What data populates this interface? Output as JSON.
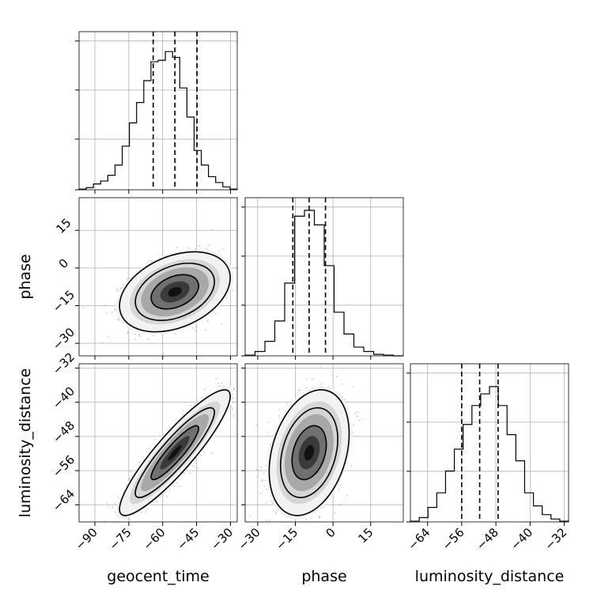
{
  "chart_data": {
    "type": "corner",
    "parameters": [
      {
        "name": "geocent_time",
        "label": "geocent_time",
        "range": [
          -97,
          -27
        ],
        "ticks": [
          "−90",
          "−75",
          "−60",
          "−45",
          "−30"
        ],
        "tick_values": [
          -90,
          -75,
          -60,
          -45,
          -30
        ],
        "quantiles": [
          -64.2,
          -54.6,
          -44.8
        ],
        "histogram_edges": [
          -97,
          -27
        ],
        "histogram_counts": [
          0.005,
          0.015,
          0.04,
          0.06,
          0.1,
          0.17,
          0.3,
          0.46,
          0.6,
          0.75,
          0.88,
          0.89,
          0.95,
          0.91,
          0.7,
          0.5,
          0.27,
          0.17,
          0.09,
          0.05,
          0.02,
          0.005
        ]
      },
      {
        "name": "phase",
        "label": "phase",
        "range": [
          -35,
          28
        ],
        "ticks": [
          "−30",
          "−15",
          "0",
          "15"
        ],
        "tick_values": [
          -30,
          -15,
          0,
          15
        ],
        "quantiles": [
          -16,
          -9.5,
          -3
        ],
        "histogram_edges": [
          -35,
          28
        ],
        "histogram_counts": [
          0.005,
          0.03,
          0.1,
          0.24,
          0.5,
          0.96,
          1.0,
          0.9,
          0.62,
          0.3,
          0.15,
          0.06,
          0.03,
          0.01,
          0.005,
          0.0
        ]
      },
      {
        "name": "luminosity_distance",
        "label": "luminosity_distance",
        "range": [
          -68,
          -31
        ],
        "ticks": [
          "−64",
          "−56",
          "−48",
          "−40",
          "−32"
        ],
        "tick_values": [
          -64,
          -56,
          -48,
          -40,
          -32
        ],
        "quantiles": [
          -56,
          -51.8,
          -47.5
        ],
        "histogram_edges": [
          -68,
          -31
        ],
        "histogram_counts": [
          0.005,
          0.03,
          0.1,
          0.2,
          0.35,
          0.5,
          0.67,
          0.8,
          0.88,
          0.93,
          0.8,
          0.6,
          0.42,
          0.2,
          0.11,
          0.05,
          0.02,
          0.005
        ]
      }
    ],
    "correlations": {
      "phase|geocent_time": 0.35,
      "luminosity_distance|geocent_time": 0.9,
      "luminosity_distance|phase": 0.3
    },
    "means": {
      "geocent_time": -54.6,
      "phase": -9.5,
      "luminosity_distance": -51.8
    },
    "sigmas": {
      "geocent_time": 10,
      "phase": 6.5,
      "luminosity_distance": 6
    },
    "grid": true,
    "colors": {
      "line": "#000000",
      "grid": "#b0b0b0",
      "points": "#9a9a9a"
    }
  }
}
